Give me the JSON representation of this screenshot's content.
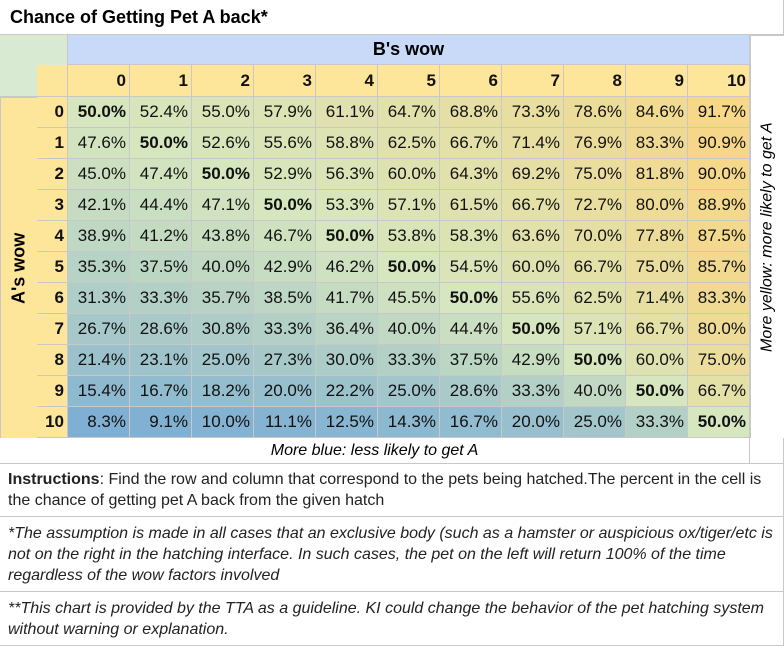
{
  "title": "Chance of Getting Pet A back*",
  "table": {
    "column_header": "B's wow",
    "row_header": "A's wow",
    "columns": [
      "0",
      "1",
      "2",
      "3",
      "4",
      "5",
      "6",
      "7",
      "8",
      "9",
      "10"
    ],
    "rows": [
      {
        "label": "0",
        "cells": [
          "50.0%",
          "52.4%",
          "55.0%",
          "57.9%",
          "61.1%",
          "64.7%",
          "68.8%",
          "73.3%",
          "78.6%",
          "84.6%",
          "91.7%"
        ]
      },
      {
        "label": "1",
        "cells": [
          "47.6%",
          "50.0%",
          "52.6%",
          "55.6%",
          "58.8%",
          "62.5%",
          "66.7%",
          "71.4%",
          "76.9%",
          "83.3%",
          "90.9%"
        ]
      },
      {
        "label": "2",
        "cells": [
          "45.0%",
          "47.4%",
          "50.0%",
          "52.9%",
          "56.3%",
          "60.0%",
          "64.3%",
          "69.2%",
          "75.0%",
          "81.8%",
          "90.0%"
        ]
      },
      {
        "label": "3",
        "cells": [
          "42.1%",
          "44.4%",
          "47.1%",
          "50.0%",
          "53.3%",
          "57.1%",
          "61.5%",
          "66.7%",
          "72.7%",
          "80.0%",
          "88.9%"
        ]
      },
      {
        "label": "4",
        "cells": [
          "38.9%",
          "41.2%",
          "43.8%",
          "46.7%",
          "50.0%",
          "53.8%",
          "58.3%",
          "63.6%",
          "70.0%",
          "77.8%",
          "87.5%"
        ]
      },
      {
        "label": "5",
        "cells": [
          "35.3%",
          "37.5%",
          "40.0%",
          "42.9%",
          "46.2%",
          "50.0%",
          "54.5%",
          "60.0%",
          "66.7%",
          "75.0%",
          "85.7%"
        ]
      },
      {
        "label": "6",
        "cells": [
          "31.3%",
          "33.3%",
          "35.7%",
          "38.5%",
          "41.7%",
          "45.5%",
          "50.0%",
          "55.6%",
          "62.5%",
          "71.4%",
          "83.3%"
        ]
      },
      {
        "label": "7",
        "cells": [
          "26.7%",
          "28.6%",
          "30.8%",
          "33.3%",
          "36.4%",
          "40.0%",
          "44.4%",
          "50.0%",
          "57.1%",
          "66.7%",
          "80.0%"
        ]
      },
      {
        "label": "8",
        "cells": [
          "21.4%",
          "23.1%",
          "25.0%",
          "27.3%",
          "30.0%",
          "33.3%",
          "37.5%",
          "42.9%",
          "50.0%",
          "60.0%",
          "75.0%"
        ]
      },
      {
        "label": "9",
        "cells": [
          "15.4%",
          "16.7%",
          "18.2%",
          "20.0%",
          "22.2%",
          "25.0%",
          "28.6%",
          "33.3%",
          "40.0%",
          "50.0%",
          "66.7%"
        ]
      },
      {
        "label": "10",
        "cells": [
          "8.3%",
          "9.1%",
          "10.0%",
          "11.1%",
          "12.5%",
          "14.3%",
          "16.7%",
          "20.0%",
          "25.0%",
          "33.3%",
          "50.0%"
        ]
      }
    ],
    "side_note": "More yellow: more likely to get A",
    "bottom_note": "More blue: less likely to get A"
  },
  "instructions": {
    "label": "Instructions",
    "text": ": Find the row and column that correspond to the pets being hatched.The percent in the cell is the chance of getting pet A back from the given hatch"
  },
  "footnotes": [
    "*The assumption is made in all cases that an exclusive body (such as a hamster or auspicious ox/tiger/etc is not on the right in the hatching interface. In such cases, the pet on the left will return 100% of the time regardless of the wow factors involved",
    "**This chart is provided by the TTA as a guideline. KI could change the behavior of the pet hatching system without warning or explanation."
  ]
}
